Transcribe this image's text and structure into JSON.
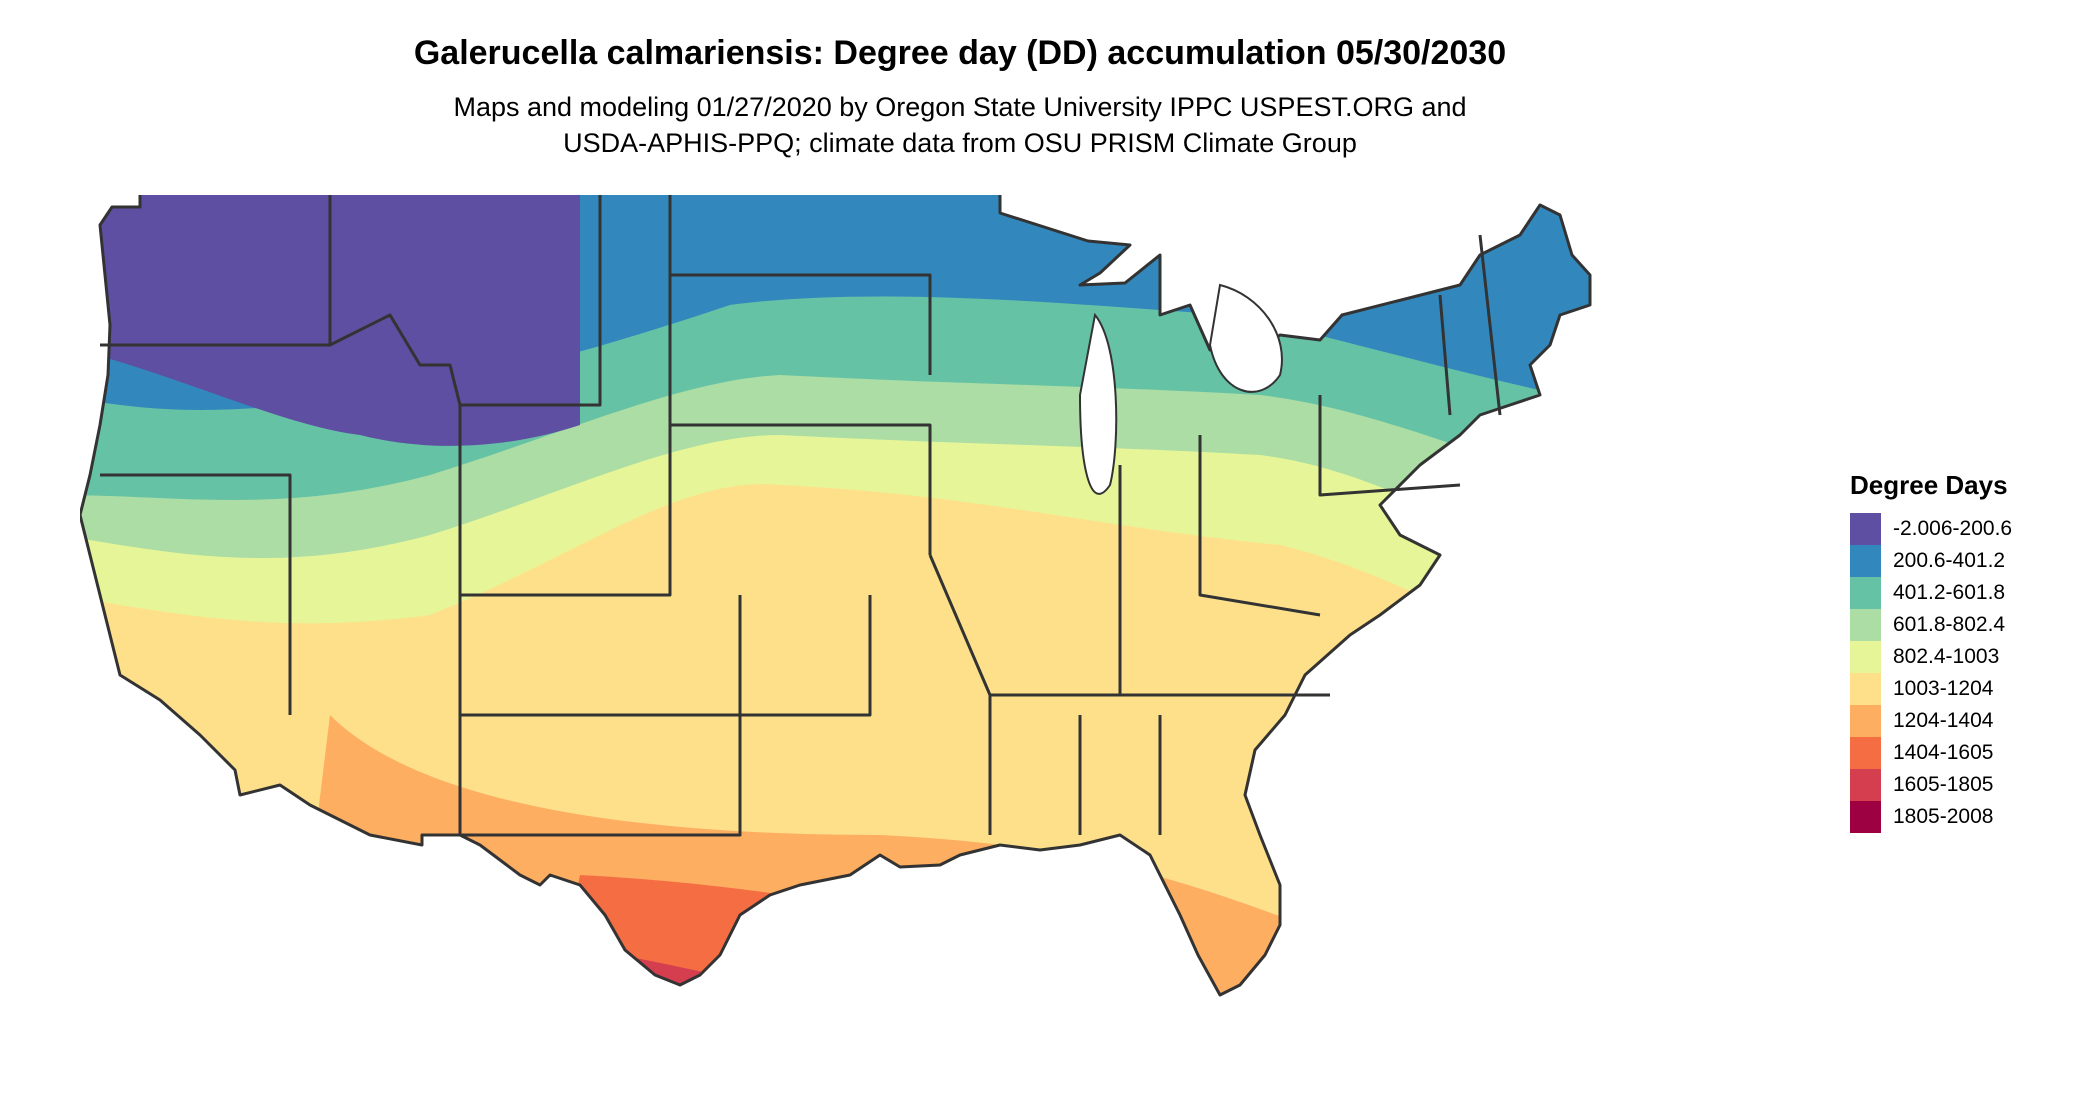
{
  "title": "Galerucella calmariensis: Degree day (DD) accumulation 05/30/2030",
  "subtitle_line1": "Maps and modeling 01/27/2020 by Oregon State University IPPC USPEST.ORG and",
  "subtitle_line2": "USDA-APHIS-PPQ; climate data from OSU PRISM Climate Group",
  "legend": {
    "title": "Degree Days",
    "items": [
      {
        "label": "-2.006-200.6",
        "color": "#5E4FA2"
      },
      {
        "label": "200.6-401.2",
        "color": "#3288BD"
      },
      {
        "label": "401.2-601.8",
        "color": "#66C2A5"
      },
      {
        "label": "601.8-802.4",
        "color": "#ABDDA4"
      },
      {
        "label": "802.4-1003",
        "color": "#E6F598"
      },
      {
        "label": "1003-1204",
        "color": "#FEE08B"
      },
      {
        "label": "1204-1404",
        "color": "#FDAE61"
      },
      {
        "label": "1404-1605",
        "color": "#F46D43"
      },
      {
        "label": "1605-1805",
        "color": "#D53E4F"
      },
      {
        "label": "1805-2008",
        "color": "#9E0142"
      }
    ]
  }
}
